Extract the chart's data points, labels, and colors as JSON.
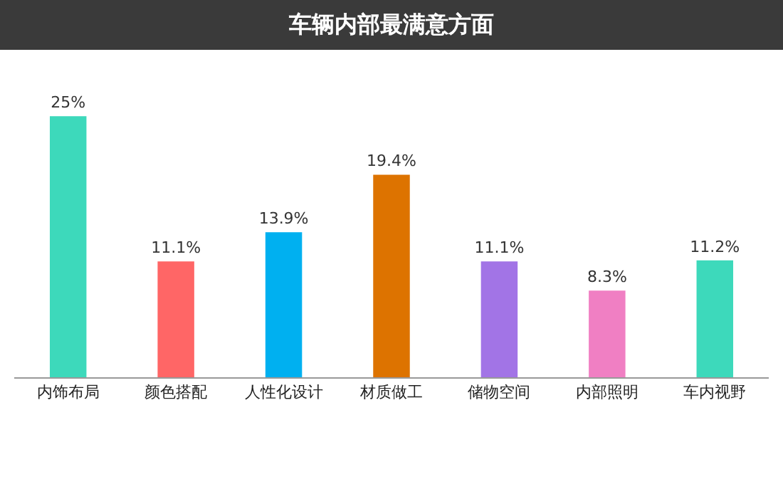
{
  "chart_data": {
    "type": "bar",
    "title": "车辆内部最满意方面",
    "categories": [
      "内饰布局",
      "颜色搭配",
      "人性化设计",
      "材质做工",
      "储物空间",
      "内部照明",
      "车内视野"
    ],
    "values": [
      25,
      11.1,
      13.9,
      19.4,
      11.1,
      8.3,
      11.2
    ],
    "value_labels": [
      "25%",
      "11.1%",
      "13.9%",
      "19.4%",
      "11.1%",
      "8.3%",
      "11.2%"
    ],
    "colors": [
      "#3dd9bb",
      "#ff6666",
      "#00b0f0",
      "#dd7300",
      "#a274e6",
      "#f07fc3",
      "#3dd9bb"
    ]
  }
}
